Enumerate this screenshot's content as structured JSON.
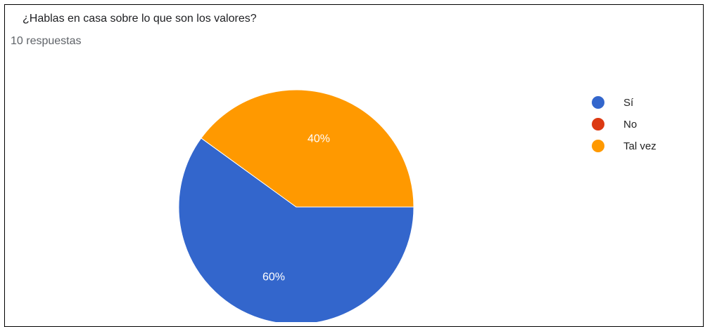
{
  "question": "¿Hablas en casa sobre lo que son los valores?",
  "response_count": "10 respuestas",
  "chart_data": {
    "type": "pie",
    "categories": [
      "Sí",
      "No",
      "Tal vez"
    ],
    "values": [
      60,
      0,
      40
    ],
    "unit": "%",
    "data_labels": [
      "60%",
      "",
      "40%"
    ],
    "colors": [
      "#3366cc",
      "#dc3912",
      "#ff9900"
    ],
    "legend_position": "right"
  }
}
